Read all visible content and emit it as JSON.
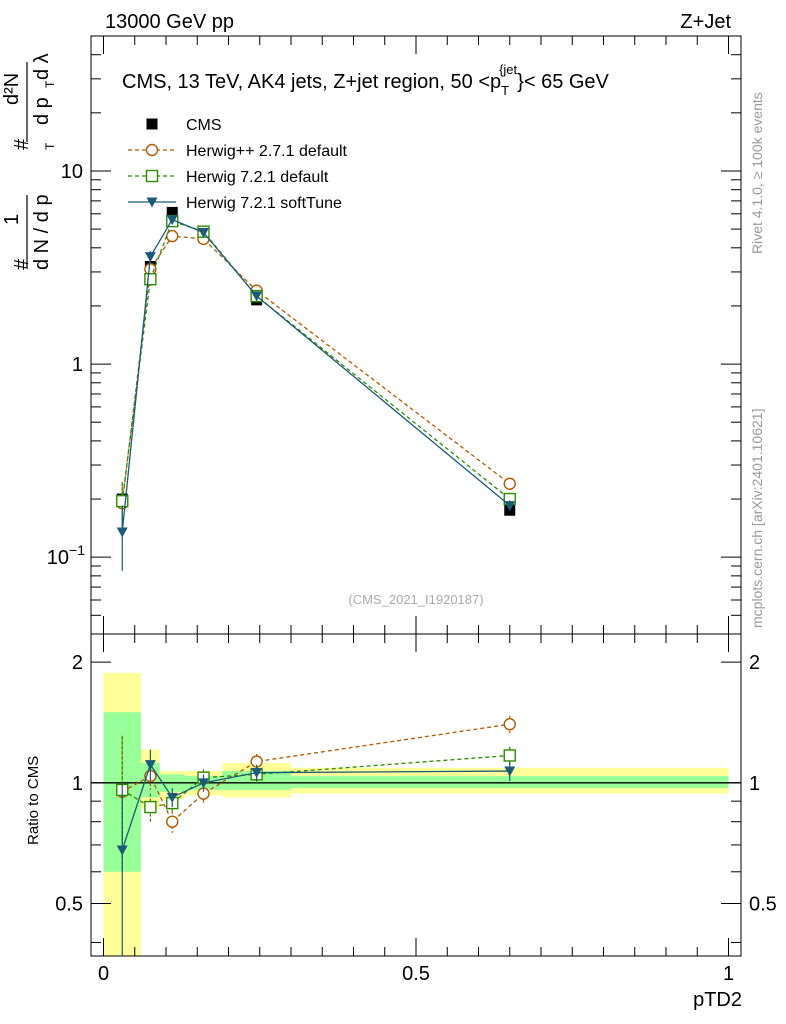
{
  "header": {
    "left": "13000 GeV pp",
    "right": "Z+Jet"
  },
  "side_labels": {
    "rivet": "Rivet 4.1.0, ≥ 100k events",
    "mcplots": "mcplots.cern.ch [arXiv:2401.10621]"
  },
  "chart_data": [
    {
      "type": "line",
      "title": "CMS, 13 TeV, AK4 jets, Z+jet region, 50 <p_T^{jet}< 65 GeV",
      "title_parts": {
        "main": "CMS, 13 TeV, AK4 jets, Z+jet region, 50 <p",
        "sub": "T",
        "sup": "{jet",
        "tail": "}< 65 GeV"
      },
      "yscale": "log",
      "ylim": [
        0.04,
        50
      ],
      "xlim": [
        -0.02,
        1.02
      ],
      "ylabel": "1/N dN/dp_T d²N/(dp_T dλ)",
      "ylabel_parts": {
        "one": "1",
        "num": "#",
        "dN": "d N / d p",
        "T": "T",
        "d2N": "d²N",
        "dpT": "d p",
        "dl": "d λ"
      },
      "yticks": [
        {
          "value": 10,
          "label": "10"
        },
        {
          "value": 1,
          "label": "1"
        },
        {
          "value": 0.1,
          "label": "10",
          "sup": "−1"
        }
      ],
      "watermark": "(CMS_2021_I1920187)",
      "series": [
        {
          "name": "CMS",
          "color": "#000000",
          "marker": "square-filled",
          "dash": "",
          "x": [
            0.03,
            0.075,
            0.11,
            0.16,
            0.245,
            0.65
          ],
          "y": [
            0.2,
            3.2,
            6.1,
            4.7,
            2.15,
            0.175
          ],
          "err": [
            0.01,
            0.15,
            0.25,
            0.2,
            0.08,
            0.008
          ]
        },
        {
          "name": "Herwig++ 2.7.1 default",
          "color": "#b35900",
          "marker": "circle-open",
          "dash": "4,3",
          "x": [
            0.03,
            0.075,
            0.11,
            0.16,
            0.245,
            0.65
          ],
          "y": [
            0.19,
            3.1,
            4.6,
            4.45,
            2.4,
            0.24
          ],
          "err": [
            0.05,
            0.2,
            0.2,
            0.15,
            0.1,
            0.015
          ]
        },
        {
          "name": "Herwig 7.2.1 default",
          "color": "#2e8b00",
          "marker": "square-open",
          "dash": "4,3",
          "x": [
            0.03,
            0.075,
            0.11,
            0.16,
            0.245,
            0.65
          ],
          "y": [
            0.195,
            2.75,
            5.5,
            4.85,
            2.25,
            0.2
          ],
          "err": [
            0.05,
            0.2,
            0.2,
            0.15,
            0.1,
            0.012
          ]
        },
        {
          "name": "Herwig 7.2.1 softTune",
          "color": "#1b5a78",
          "marker": "triangle-down-filled",
          "dash": "",
          "x": [
            0.03,
            0.075,
            0.11,
            0.16,
            0.245,
            0.65
          ],
          "y": [
            0.135,
            3.6,
            5.6,
            4.8,
            2.25,
            0.185
          ],
          "err": [
            0.05,
            0.25,
            0.2,
            0.15,
            0.1,
            0.012
          ]
        }
      ]
    },
    {
      "type": "line",
      "ylabel": "Ratio to CMS",
      "xlabel": "pTD2",
      "yscale": "log",
      "ylim": [
        0.37,
        2.35
      ],
      "xlim": [
        -0.02,
        1.02
      ],
      "yticks": [
        {
          "value": 2,
          "label": "2"
        },
        {
          "value": 1,
          "label": "1"
        },
        {
          "value": 0.5,
          "label": "0.5"
        }
      ],
      "xticks": [
        {
          "value": 0,
          "label": "0"
        },
        {
          "value": 0.5,
          "label": "0.5"
        },
        {
          "value": 1,
          "label": "1"
        }
      ],
      "bands": {
        "bins": [
          0,
          0.06,
          0.09,
          0.13,
          0.19,
          0.3,
          1.0
        ],
        "stat_lo": [
          0.6,
          0.92,
          0.95,
          0.96,
          0.96,
          0.97
        ],
        "stat_hi": [
          1.5,
          1.12,
          1.05,
          1.04,
          1.07,
          1.04
        ],
        "syst_lo": [
          0.37,
          0.86,
          0.91,
          0.93,
          0.92,
          0.94
        ],
        "syst_hi": [
          1.88,
          1.21,
          1.07,
          1.07,
          1.12,
          1.09
        ]
      },
      "series": [
        {
          "name": "Herwig++ 2.7.1 default",
          "x": [
            0.03,
            0.075,
            0.11,
            0.16,
            0.245,
            0.65
          ],
          "y": [
            0.95,
            1.04,
            0.8,
            0.94,
            1.13,
            1.4
          ],
          "err": [
            0.35,
            0.08,
            0.05,
            0.05,
            0.05,
            0.07
          ]
        },
        {
          "name": "Herwig 7.2.1 default",
          "x": [
            0.03,
            0.075,
            0.11,
            0.16,
            0.245,
            0.65
          ],
          "y": [
            0.96,
            0.87,
            0.89,
            1.03,
            1.05,
            1.17
          ],
          "err": [
            0.35,
            0.07,
            0.05,
            0.05,
            0.05,
            0.06
          ]
        },
        {
          "name": "Herwig 7.2.1 softTune",
          "x": [
            0.03,
            0.075,
            0.11,
            0.16,
            0.245,
            0.65
          ],
          "y": [
            0.68,
            1.11,
            0.92,
            1.0,
            1.06,
            1.07
          ],
          "err": [
            0.32,
            0.1,
            0.05,
            0.05,
            0.05,
            0.06
          ]
        }
      ]
    }
  ]
}
